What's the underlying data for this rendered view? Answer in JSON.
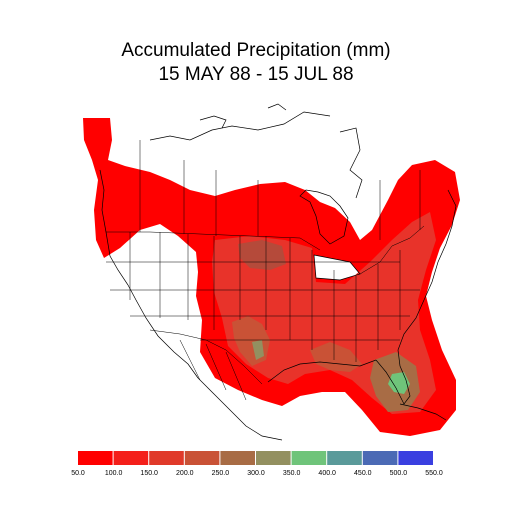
{
  "title": {
    "line1": "Accumulated Precipitation (mm)",
    "line2": "15 MAY 88 - 15 JUL 88"
  },
  "legend": {
    "colors": [
      "#ff0000",
      "#f41f1a",
      "#e03a2a",
      "#c95236",
      "#a86c45",
      "#939060",
      "#6fc47a",
      "#5a9a9a",
      "#4b6ab5",
      "#3a3fe0",
      "#1a1aff"
    ],
    "labels": [
      "50.0",
      "100.0",
      "150.0",
      "200.0",
      "250.0",
      "300.0",
      "350.0",
      "400.0",
      "450.0",
      "500.0",
      "550.0"
    ]
  }
}
